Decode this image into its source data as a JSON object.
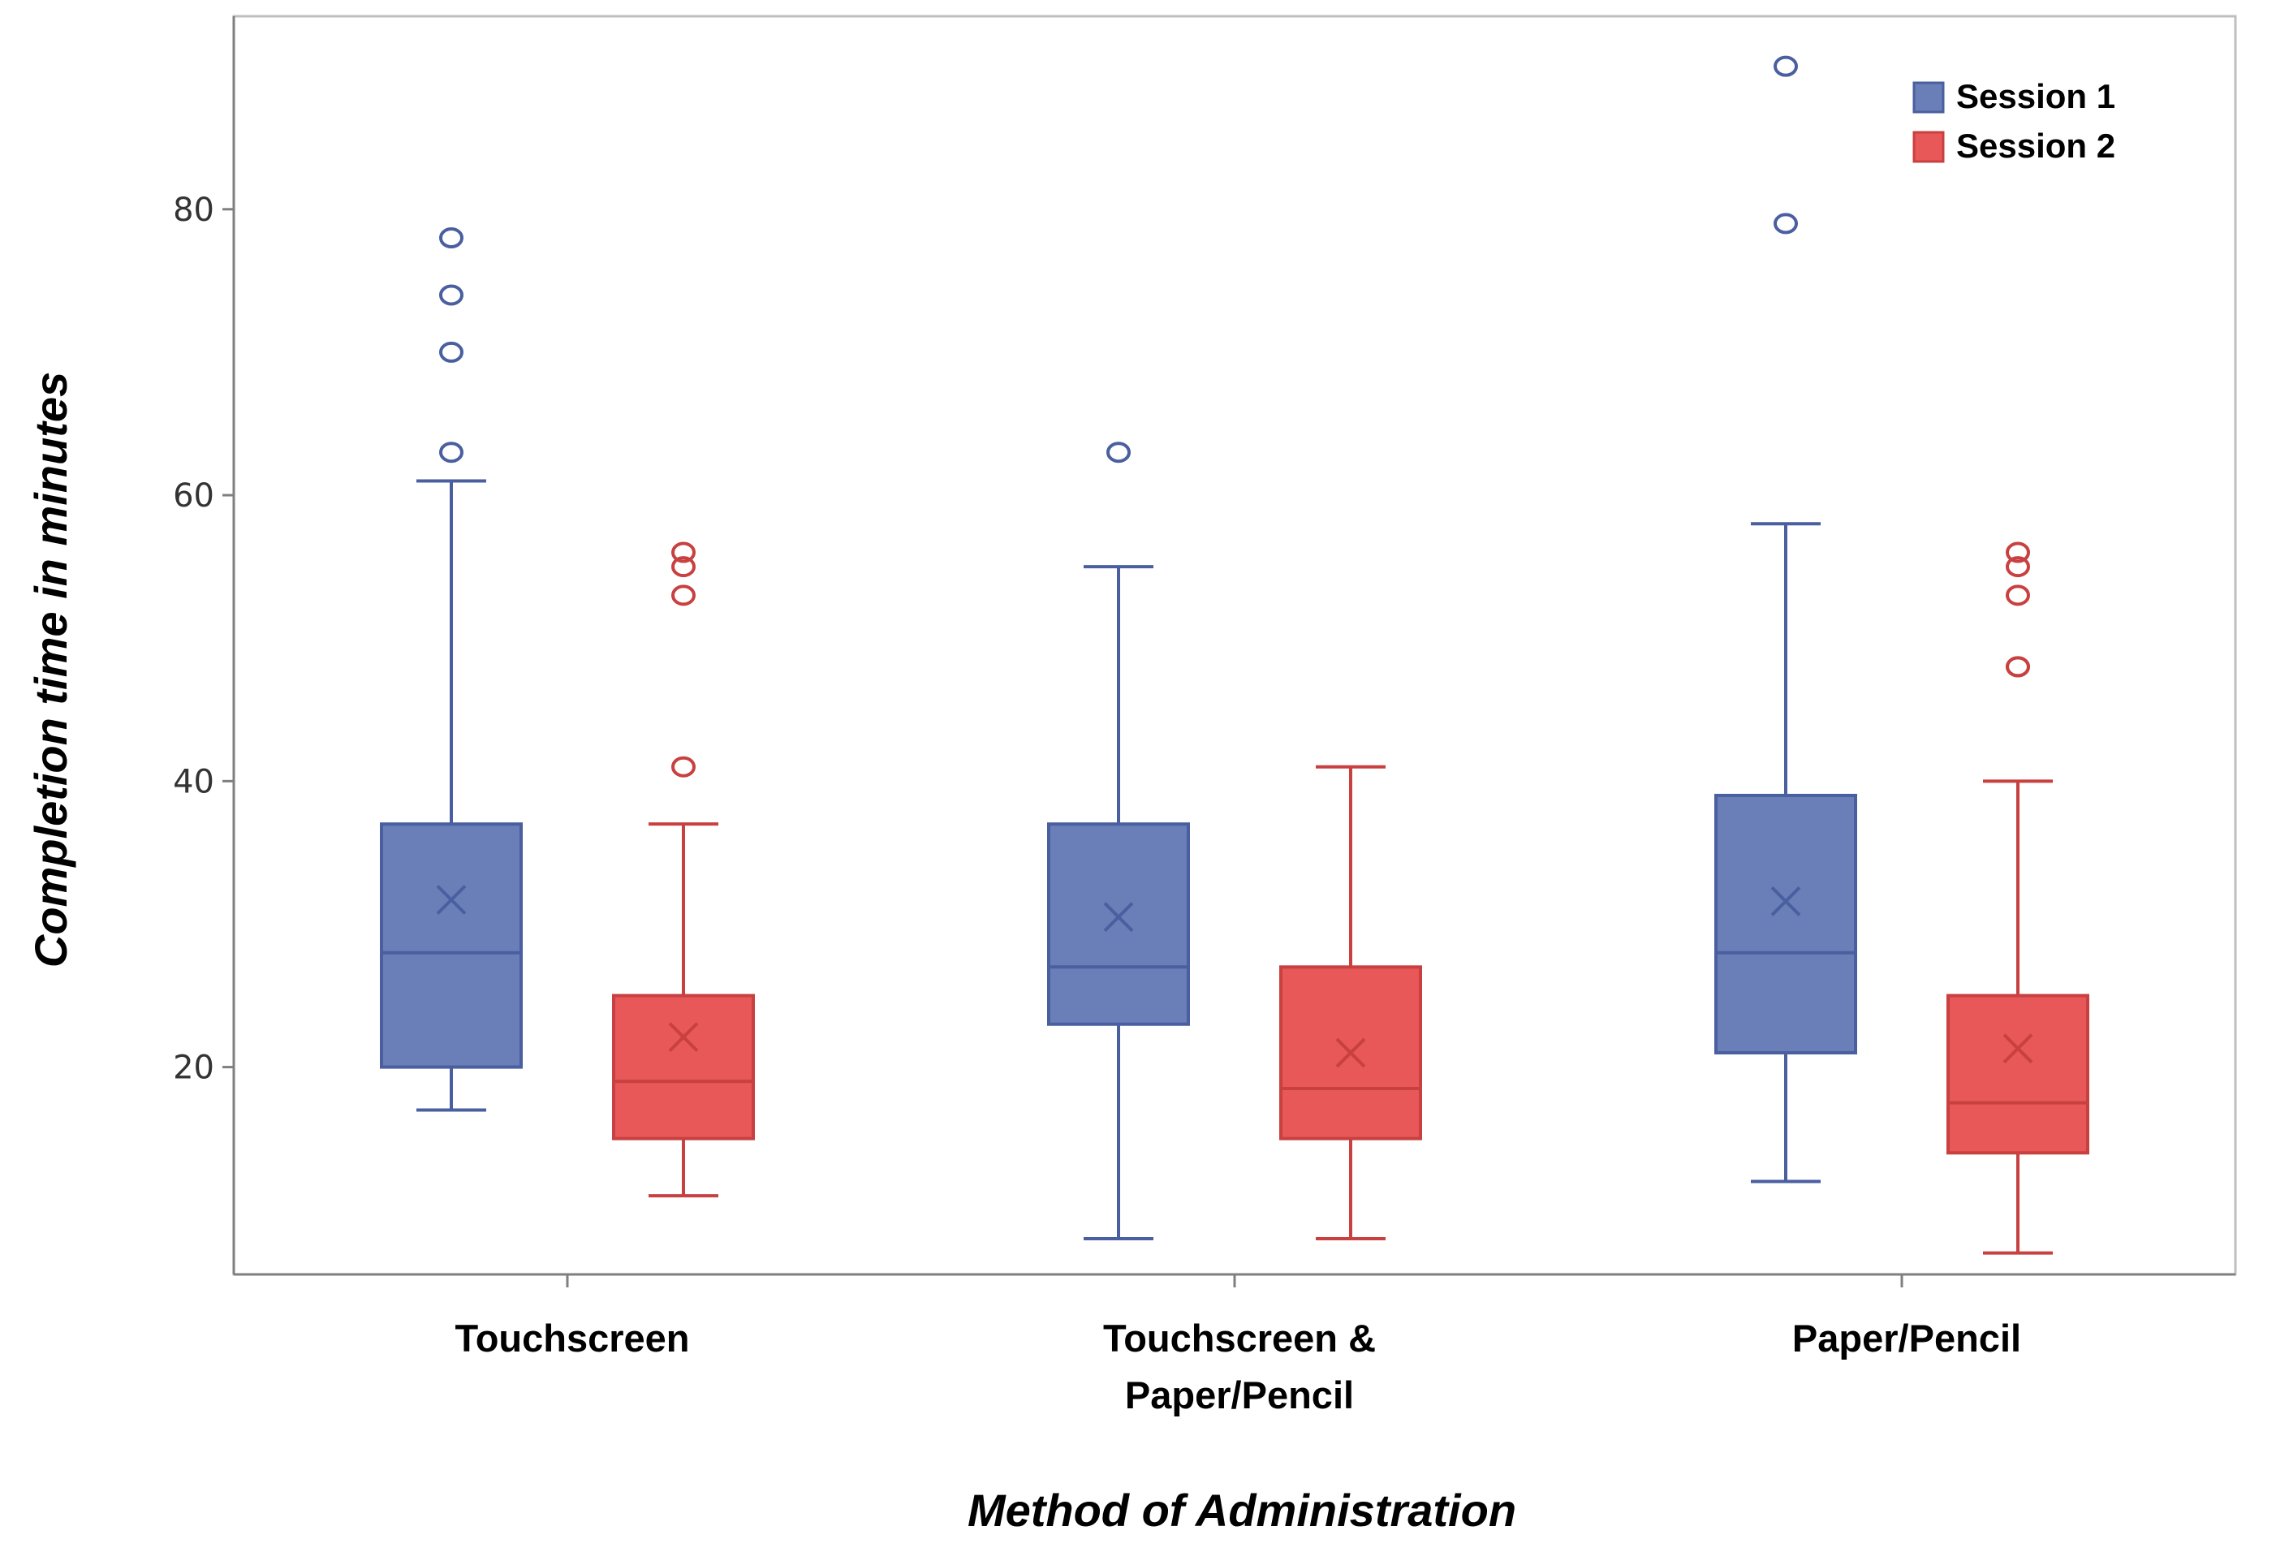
{
  "chart_data": {
    "type": "boxplot",
    "xlabel": "Method of Administration",
    "ylabel": "Completion time in minutes",
    "ylim": [
      5.5,
      93.5
    ],
    "yticks": [
      20,
      40,
      60,
      80
    ],
    "grid": false,
    "legend_position": "top-right",
    "categories": [
      {
        "lines": [
          "Touchscreen"
        ]
      },
      {
        "lines": [
          "Touchscreen &",
          "Paper/Pencil"
        ]
      },
      {
        "lines": [
          "Paper/Pencil"
        ]
      }
    ],
    "series": [
      {
        "name": "Session 1",
        "color": "#6a7fb8",
        "edge": "#4a5fa0",
        "boxes": [
          {
            "min": 17,
            "q1": 20,
            "median": 28,
            "q3": 37,
            "max": 61,
            "mean": 31.7,
            "outliers": [
              63,
              70,
              74,
              78
            ]
          },
          {
            "min": 8,
            "q1": 23,
            "median": 27,
            "q3": 37,
            "max": 55,
            "mean": 30.5,
            "outliers": [
              63
            ]
          },
          {
            "min": 12,
            "q1": 21,
            "median": 28,
            "q3": 39,
            "max": 58,
            "mean": 31.6,
            "outliers": [
              79,
              90
            ]
          }
        ]
      },
      {
        "name": "Session 2",
        "color": "#e85858",
        "edge": "#c84040",
        "boxes": [
          {
            "min": 11,
            "q1": 15,
            "median": 19,
            "q3": 25,
            "max": 37,
            "mean": 22.1,
            "outliers": [
              41,
              53,
              55,
              56
            ]
          },
          {
            "min": 8,
            "q1": 15,
            "median": 18.5,
            "q3": 27,
            "max": 41,
            "mean": 21,
            "outliers": []
          },
          {
            "min": 7,
            "q1": 14,
            "median": 17.5,
            "q3": 25,
            "max": 40,
            "mean": 21.3,
            "outliers": [
              48,
              48,
              53,
              55,
              56
            ]
          }
        ]
      }
    ]
  }
}
